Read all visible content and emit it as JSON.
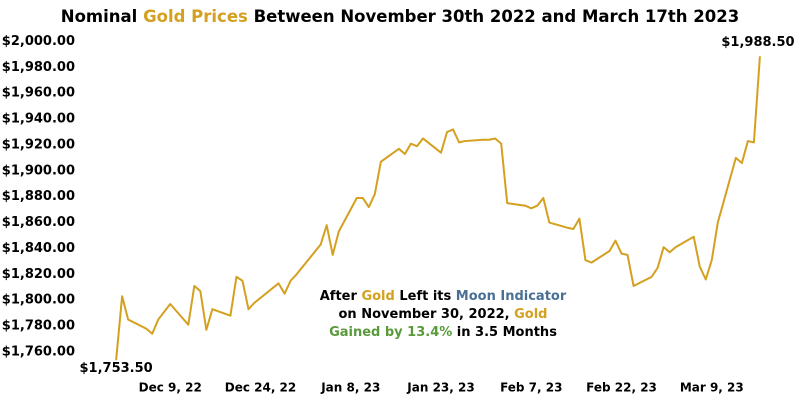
{
  "chart_data": {
    "type": "line",
    "title": [
      {
        "text": "Nominal ",
        "color": "#000000"
      },
      {
        "text": "Gold Prices",
        "color": "#d4a020"
      },
      {
        "text": " Between November 30th 2022 and March 17th 2023",
        "color": "#000000"
      }
    ],
    "x": [
      "2022-11-30",
      "2022-12-01",
      "2022-12-02",
      "2022-12-05",
      "2022-12-06",
      "2022-12-07",
      "2022-12-08",
      "2022-12-09",
      "2022-12-12",
      "2022-12-13",
      "2022-12-14",
      "2022-12-15",
      "2022-12-16",
      "2022-12-19",
      "2022-12-20",
      "2022-12-21",
      "2022-12-22",
      "2022-12-23",
      "2022-12-27",
      "2022-12-28",
      "2022-12-29",
      "2022-12-30",
      "2023-01-03",
      "2023-01-04",
      "2023-01-05",
      "2023-01-06",
      "2023-01-09",
      "2023-01-10",
      "2023-01-11",
      "2023-01-12",
      "2023-01-13",
      "2023-01-16",
      "2023-01-17",
      "2023-01-18",
      "2023-01-19",
      "2023-01-20",
      "2023-01-23",
      "2023-01-24",
      "2023-01-25",
      "2023-01-26",
      "2023-01-27",
      "2023-01-30",
      "2023-01-31",
      "2023-02-01",
      "2023-02-02",
      "2023-02-03",
      "2023-02-06",
      "2023-02-07",
      "2023-02-08",
      "2023-02-09",
      "2023-02-10",
      "2023-02-13",
      "2023-02-14",
      "2023-02-15",
      "2023-02-16",
      "2023-02-17",
      "2023-02-20",
      "2023-02-21",
      "2023-02-22",
      "2023-02-23",
      "2023-02-24",
      "2023-02-27",
      "2023-02-28",
      "2023-03-01",
      "2023-03-02",
      "2023-03-03",
      "2023-03-06",
      "2023-03-07",
      "2023-03-08",
      "2023-03-09",
      "2023-03-10",
      "2023-03-13",
      "2023-03-14",
      "2023-03-15",
      "2023-03-16",
      "2023-03-17"
    ],
    "values": [
      1753.5,
      1803,
      1785,
      1778,
      1774,
      1785,
      1791,
      1797,
      1781,
      1811,
      1807,
      1777,
      1793,
      1788,
      1818,
      1815,
      1793,
      1798,
      1813,
      1805,
      1815,
      1820,
      1843,
      1858,
      1835,
      1853,
      1879,
      1879,
      1872,
      1882,
      1907,
      1917,
      1913,
      1921,
      1919,
      1925,
      1914,
      1930,
      1932,
      1922,
      1923,
      1924,
      1924,
      1925,
      1921,
      1875,
      1873,
      1871,
      1873,
      1879,
      1860,
      1856,
      1855,
      1863,
      1831,
      1829,
      1838,
      1846,
      1836,
      1835,
      1811,
      1818,
      1825,
      1841,
      1837,
      1841,
      1849,
      1826,
      1816,
      1831,
      1860,
      1910,
      1906,
      1923,
      1922,
      1988.5
    ],
    "value_labels": [
      "$1,753.50",
      null,
      null,
      null,
      null,
      null,
      null,
      null,
      null,
      null,
      null,
      null,
      null,
      null,
      null,
      null,
      null,
      null,
      null,
      null,
      null,
      null,
      null,
      null,
      null,
      null,
      null,
      null,
      null,
      null,
      null,
      null,
      null,
      null,
      null,
      null,
      null,
      null,
      null,
      null,
      null,
      null,
      null,
      null,
      null,
      null,
      null,
      null,
      null,
      null,
      null,
      null,
      null,
      null,
      null,
      null,
      null,
      null,
      null,
      null,
      null,
      null,
      null,
      null,
      null,
      null,
      null,
      null,
      null,
      null,
      null,
      null,
      null,
      null,
      null,
      "$1,988.50"
    ],
    "color": "#d4a020",
    "xlim": [
      "2022-11-24",
      "2023-03-22"
    ],
    "xticks": [
      {
        "value": "2022-12-09",
        "label": "Dec 9, 22"
      },
      {
        "value": "2022-12-24",
        "label": "Dec 24, 22"
      },
      {
        "value": "2023-01-08",
        "label": "Jan 8, 23"
      },
      {
        "value": "2023-01-23",
        "label": "Jan 23, 23"
      },
      {
        "value": "2023-02-07",
        "label": "Feb 7, 23"
      },
      {
        "value": "2023-02-22",
        "label": "Feb 22, 23"
      },
      {
        "value": "2023-03-09",
        "label": "Mar 9, 23"
      }
    ],
    "ylim": [
      1746,
      2005
    ],
    "yticks": [
      {
        "value": 1760,
        "label": "$1,760.00"
      },
      {
        "value": 1780,
        "label": "$1,780.00"
      },
      {
        "value": 1800,
        "label": "$1,800.00"
      },
      {
        "value": 1820,
        "label": "$1,820.00"
      },
      {
        "value": 1840,
        "label": "$1,840.00"
      },
      {
        "value": 1860,
        "label": "$1,860.00"
      },
      {
        "value": 1880,
        "label": "$1,880.00"
      },
      {
        "value": 1900,
        "label": "$1,900.00"
      },
      {
        "value": 1920,
        "label": "$1,920.00"
      },
      {
        "value": 1940,
        "label": "$1,940.00"
      },
      {
        "value": 1960,
        "label": "$1,960.00"
      },
      {
        "value": 1980,
        "label": "$1,980.00"
      },
      {
        "value": 2000,
        "label": "$2,000.00"
      }
    ],
    "grid": false,
    "annotation": [
      [
        {
          "text": "After ",
          "color": "#000000"
        },
        {
          "text": "Gold",
          "color": "#d4a020"
        },
        {
          "text": " Left its ",
          "color": "#000000"
        },
        {
          "text": "Moon Indicator",
          "color": "#4a6f96"
        }
      ],
      [
        {
          "text": "on November 30, 2022, ",
          "color": "#000000"
        },
        {
          "text": "Gold",
          "color": "#d4a020"
        }
      ],
      [
        {
          "text": "Gained by 13.4%",
          "color": "#5a9a3c"
        },
        {
          "text": " in 3.5 Months",
          "color": "#000000"
        }
      ]
    ]
  }
}
